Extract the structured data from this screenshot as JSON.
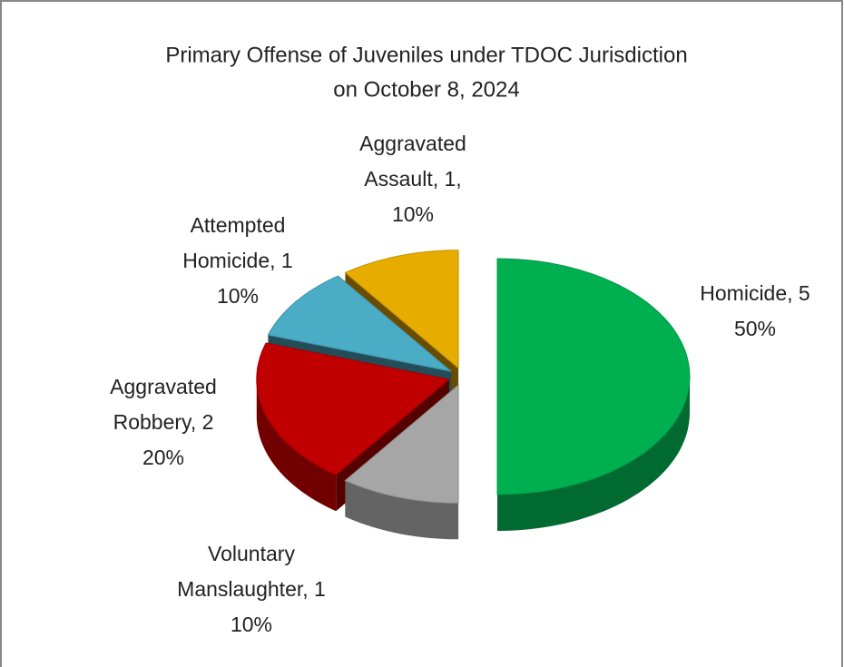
{
  "chart_data": {
    "type": "pie3d",
    "title": [
      "Primary Offense of Juveniles under TDOC Jurisdiction",
      "on October 8, 2024"
    ],
    "values": [
      5,
      1,
      2,
      1,
      1
    ],
    "value_labels": [
      [
        "Homicide, 5",
        "50%"
      ],
      [
        "Voluntary",
        "Manslaughter, 1",
        "10%"
      ],
      [
        "Aggravated",
        "Robbery, 2",
        "20%"
      ],
      [
        "Attempted",
        "Homicide, 1",
        "10%"
      ],
      [
        "Aggravated",
        "Assault, 1,",
        "10%"
      ]
    ],
    "colors": [
      "#00b050",
      "#a6a6a6",
      "#c00000",
      "#4bacc6",
      "#e6ac00"
    ]
  }
}
